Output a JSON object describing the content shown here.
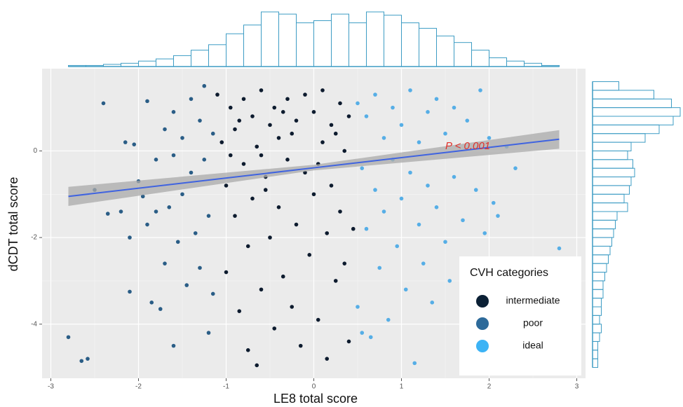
{
  "chart_data": {
    "type": "scatter",
    "x_label": "LE8 total score",
    "y_label": "dCDT total score",
    "xlim": [
      -3.1,
      3.1
    ],
    "ylim": [
      -5.25,
      1.9
    ],
    "xticks": [
      -3,
      -2,
      -1,
      0,
      1,
      2,
      3
    ],
    "yticks": [
      -4,
      -2,
      0
    ],
    "grid": true,
    "legend": {
      "title": "CVH  categories",
      "position": "lower right"
    },
    "annotation": {
      "text": "P < 0.001",
      "x": 1.5,
      "y": 0.1,
      "color": "#e0302a"
    },
    "regression": {
      "x": [
        -2.8,
        0,
        2.8
      ],
      "values": [
        -1.05,
        -0.39,
        0.27
      ],
      "ci_lower": [
        -1.27,
        -0.45,
        0.05
      ],
      "ci_upper": [
        -0.83,
        -0.32,
        0.48
      ],
      "color": "#3f63e0",
      "band_color": "#a9a9a9"
    },
    "series": [
      {
        "name": "intermediate",
        "color": "#0d1b2e",
        "legend_color": "#0b2035",
        "x": [
          -1.1,
          -1.05,
          -1.0,
          -1.0,
          -0.95,
          -0.9,
          -0.9,
          -0.85,
          -0.8,
          -0.8,
          -0.75,
          -0.75,
          -0.7,
          -0.7,
          -0.65,
          -0.65,
          -0.6,
          -0.6,
          -0.55,
          -0.5,
          -0.5,
          -0.45,
          -0.45,
          -0.4,
          -0.4,
          -0.35,
          -0.3,
          -0.3,
          -0.25,
          -0.2,
          -0.2,
          -0.15,
          -0.1,
          -0.1,
          -0.05,
          0.0,
          0.0,
          0.05,
          0.1,
          0.1,
          0.15,
          0.15,
          0.2,
          0.2,
          0.25,
          0.3,
          0.3,
          0.35,
          0.35,
          0.4,
          0.4,
          0.45,
          -0.95,
          -0.55,
          -0.25,
          0.05,
          -0.85,
          -0.35,
          0.25,
          -0.6
        ],
        "values": [
          1.3,
          0.2,
          -0.8,
          -2.8,
          1.0,
          -1.5,
          0.5,
          -3.7,
          1.2,
          -0.3,
          -2.2,
          -4.6,
          0.8,
          -1.1,
          0.1,
          -4.95,
          1.4,
          -3.2,
          -0.6,
          0.6,
          -2.0,
          1.0,
          -4.1,
          -1.3,
          0.3,
          -2.9,
          1.2,
          -0.2,
          -3.6,
          0.7,
          -1.7,
          -4.5,
          1.3,
          -0.5,
          -2.4,
          0.9,
          -1.0,
          -3.9,
          0.2,
          1.4,
          -1.9,
          -4.8,
          0.6,
          -0.8,
          -3.0,
          1.1,
          -1.4,
          -2.6,
          0.0,
          -4.4,
          0.8,
          -1.8,
          -0.1,
          -0.9,
          0.4,
          -0.3,
          0.7,
          0.9,
          0.4,
          -0.1
        ]
      },
      {
        "name": "poor",
        "color": "#2a5d86",
        "legend_color": "#2d6a9a",
        "x": [
          -2.8,
          -2.65,
          -2.58,
          -2.5,
          -2.4,
          -2.35,
          -2.2,
          -2.15,
          -2.1,
          -2.05,
          -2.1,
          -2.0,
          -1.95,
          -1.9,
          -1.9,
          -1.85,
          -1.8,
          -1.75,
          -1.7,
          -1.7,
          -1.65,
          -1.6,
          -1.6,
          -1.55,
          -1.5,
          -1.5,
          -1.45,
          -1.4,
          -1.4,
          -1.35,
          -1.3,
          -1.3,
          -1.25,
          -1.25,
          -1.2,
          -1.2,
          -1.15,
          -1.15,
          -1.6,
          -1.8
        ],
        "values": [
          -4.3,
          -4.85,
          -4.8,
          -0.9,
          1.1,
          -1.45,
          -1.4,
          0.2,
          -2.0,
          0.15,
          -3.25,
          -0.7,
          -1.05,
          1.15,
          -1.7,
          -3.5,
          -0.2,
          -3.65,
          -2.6,
          0.5,
          -1.3,
          0.9,
          -4.5,
          -2.1,
          0.3,
          -1.0,
          -3.1,
          1.2,
          -0.5,
          -1.9,
          0.7,
          -2.7,
          -0.2,
          1.5,
          -1.5,
          -4.2,
          0.4,
          -3.3,
          -0.1,
          -1.4
        ]
      },
      {
        "name": "ideal",
        "color": "#56aee6",
        "legend_color": "#3cb3f5",
        "x": [
          0.5,
          0.5,
          0.55,
          0.6,
          0.6,
          0.65,
          0.7,
          0.7,
          0.75,
          0.8,
          0.8,
          0.85,
          0.9,
          0.9,
          0.95,
          1.0,
          1.0,
          1.05,
          1.1,
          1.1,
          1.15,
          1.2,
          1.2,
          1.25,
          1.3,
          1.3,
          1.35,
          1.4,
          1.4,
          1.5,
          1.5,
          1.55,
          1.6,
          1.6,
          1.7,
          1.75,
          1.8,
          1.85,
          1.9,
          1.95,
          2.0,
          2.05,
          2.1,
          2.2,
          2.3,
          2.35,
          2.8,
          2.0,
          1.7,
          0.55
        ],
        "values": [
          1.1,
          -3.6,
          -0.4,
          0.8,
          -1.8,
          -4.3,
          1.3,
          -0.9,
          -2.7,
          0.3,
          -1.4,
          -3.9,
          1.0,
          -0.2,
          -2.2,
          0.6,
          -1.1,
          -3.2,
          1.4,
          -0.5,
          -4.9,
          0.2,
          -1.7,
          -2.6,
          0.9,
          -0.8,
          -3.5,
          1.2,
          -1.3,
          0.4,
          -2.1,
          -3.0,
          1.0,
          -0.6,
          -1.6,
          0.7,
          -2.7,
          -0.9,
          1.4,
          -1.9,
          0.3,
          -1.2,
          -1.5,
          0.1,
          -0.4,
          -2.5,
          -2.25,
          -3.0,
          -3.5,
          -4.2
        ]
      }
    ],
    "x_histogram": {
      "color": "#3d9cc4",
      "bins": [
        -2.8,
        -2.6,
        -2.4,
        -2.2,
        -2,
        -1.8,
        -1.6,
        -1.4,
        -1.2,
        -1,
        -0.8,
        -0.6,
        -0.4,
        -0.2,
        0,
        0.2,
        0.4,
        0.6,
        0.8,
        1,
        1.2,
        1.4,
        1.6,
        1.8,
        2,
        2.2,
        2.4,
        2.6,
        2.8
      ],
      "counts": [
        1,
        1,
        2,
        3,
        5,
        7,
        10,
        15,
        20,
        30,
        38,
        50,
        48,
        40,
        42,
        48,
        40,
        50,
        47,
        40,
        35,
        28,
        22,
        15,
        8,
        5,
        3,
        1
      ]
    },
    "y_histogram": {
      "color": "#3d9cc4",
      "bins": [
        -5,
        -4.8,
        -4.6,
        -4.4,
        -4.2,
        -4,
        -3.8,
        -3.6,
        -3.4,
        -3.2,
        -3,
        -2.8,
        -2.6,
        -2.4,
        -2.2,
        -2,
        -1.8,
        -1.6,
        -1.4,
        -1.2,
        -1,
        -0.8,
        -0.6,
        -0.4,
        -0.2,
        0,
        0.2,
        0.4,
        0.6,
        0.8,
        1,
        1.2,
        1.4,
        1.6
      ],
      "counts": [
        3,
        3,
        3,
        4,
        5,
        4,
        5,
        5,
        6,
        6,
        7,
        8,
        9,
        10,
        11,
        12,
        13,
        14,
        20,
        18,
        21,
        22,
        24,
        23,
        20,
        22,
        30,
        38,
        46,
        50,
        45,
        35,
        15
      ]
    }
  }
}
